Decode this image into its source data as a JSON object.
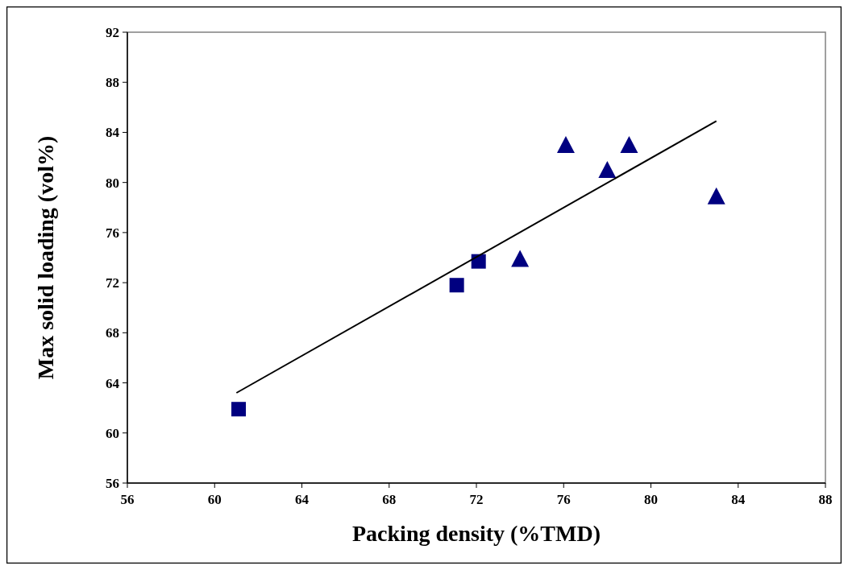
{
  "chart_data": {
    "type": "scatter",
    "xlabel": "Packing density (%TMD)",
    "ylabel": "Max solid loading (vol%)",
    "xlim": [
      56,
      88
    ],
    "xticks": [
      56,
      60,
      64,
      68,
      72,
      76,
      80,
      84,
      88
    ],
    "ylim": [
      56,
      92
    ],
    "yticks": [
      56,
      60,
      64,
      68,
      72,
      76,
      80,
      84,
      88,
      92
    ],
    "grid": false,
    "series": [
      {
        "color": "#000080",
        "marker": "square",
        "x": [
          61.1,
          71.1,
          72.1
        ],
        "values": [
          61.9,
          71.8,
          73.7
        ]
      },
      {
        "color": "#000080",
        "marker": "triangle",
        "x": [
          74.0,
          76.1,
          78.0,
          79.0,
          83.0
        ],
        "values": [
          73.9,
          83.0,
          81.0,
          83.0,
          78.9
        ]
      },
      {
        "type": "line",
        "color": "#000000",
        "marker": "none",
        "line_style": "solid",
        "x": [
          61.0,
          83.0
        ],
        "values": [
          63.2,
          84.9
        ]
      }
    ]
  }
}
